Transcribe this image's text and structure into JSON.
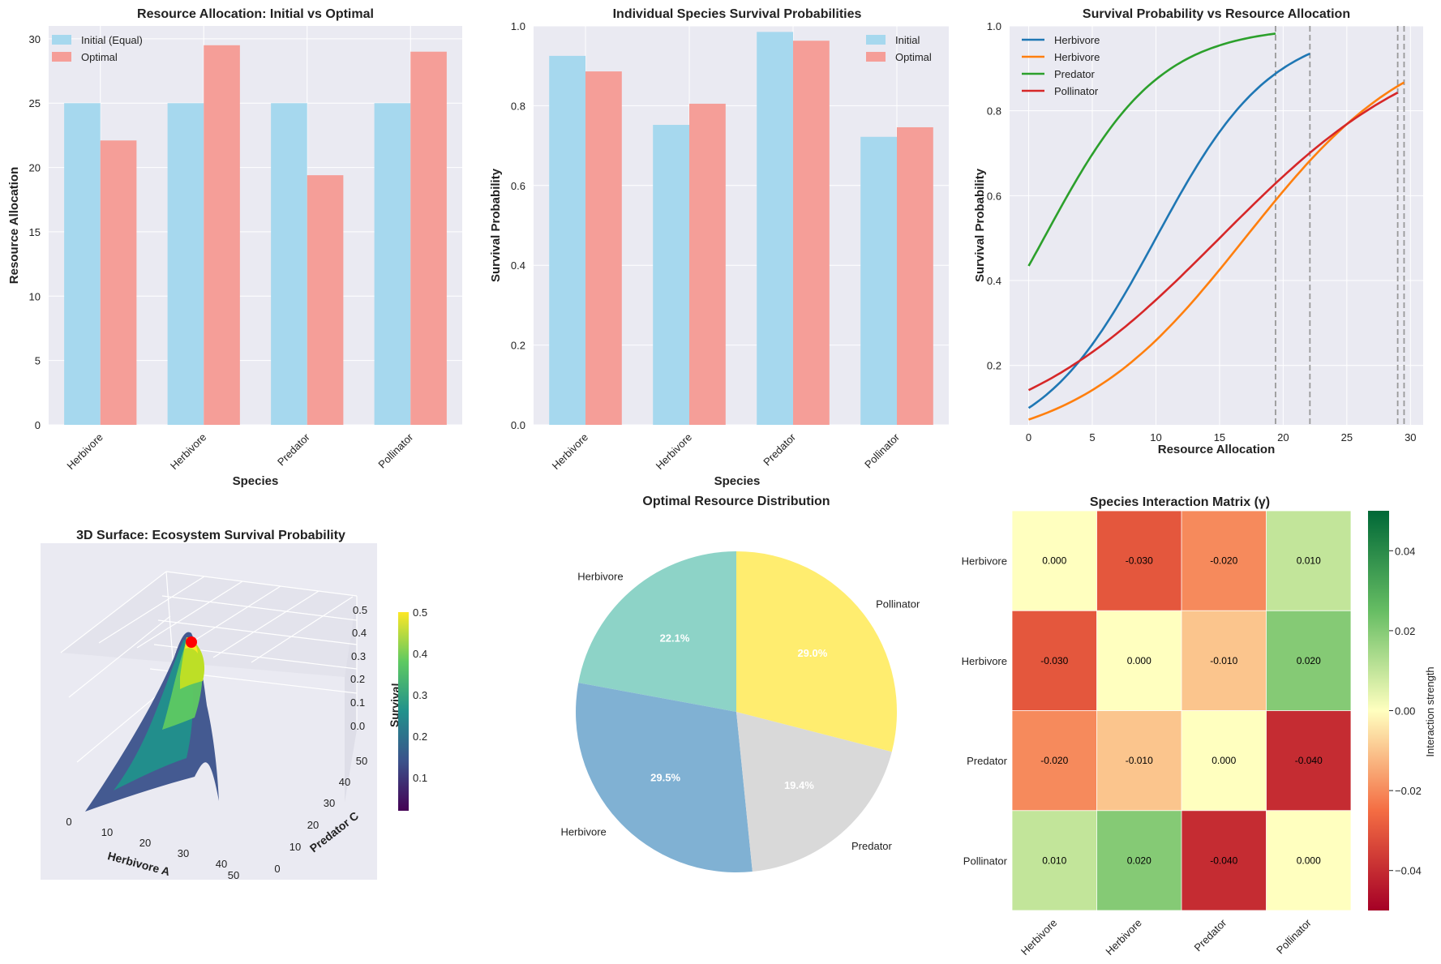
{
  "colors": {
    "initial": "#a6d8ee",
    "optimal": "#f59e98",
    "axes_bg": "#eaeaf2",
    "line1": "#1f77b4",
    "line2": "#ff7f0e",
    "line3": "#2ca02c",
    "line4": "#d62728",
    "pie": [
      "#8dd3c7",
      "#80b1d3",
      "#d9d9d9",
      "#ffed6f"
    ],
    "marker": "#ff0000"
  },
  "chart_data": [
    {
      "id": "alloc",
      "type": "bar",
      "title": "Resource Allocation: Initial vs Optimal",
      "xlabel": "Species",
      "ylabel": "Resource Allocation",
      "categories": [
        "Herbivore",
        "Herbivore",
        "Predator",
        "Pollinator"
      ],
      "series": [
        {
          "name": "Initial (Equal)",
          "values": [
            25,
            25,
            25,
            25
          ]
        },
        {
          "name": "Optimal",
          "values": [
            22.1,
            29.5,
            19.4,
            29.0
          ]
        }
      ],
      "ylim": [
        0,
        31
      ],
      "yticks": [
        0,
        5,
        10,
        15,
        20,
        25,
        30
      ],
      "legend": "top-left"
    },
    {
      "id": "surv",
      "type": "bar",
      "title": "Individual Species Survival Probabilities",
      "xlabel": "Species",
      "ylabel": "Survival Probability",
      "categories": [
        "Herbivore",
        "Herbivore",
        "Predator",
        "Pollinator"
      ],
      "series": [
        {
          "name": "Initial",
          "values": [
            0.925,
            0.752,
            0.985,
            0.722
          ]
        },
        {
          "name": "Optimal",
          "values": [
            0.886,
            0.805,
            0.963,
            0.746
          ]
        }
      ],
      "ylim": [
        0,
        1.0
      ],
      "yticks": [
        0.0,
        0.2,
        0.4,
        0.6,
        0.8,
        1.0
      ],
      "legend": "top-right"
    },
    {
      "id": "curves",
      "type": "line",
      "title": "Survival Probability vs Resource Allocation",
      "xlabel": "Resource Allocation",
      "ylabel": "Survival Probability",
      "xlim": [
        -1.5,
        31
      ],
      "ylim": [
        0.06,
        1.0
      ],
      "xticks": [
        0,
        5,
        10,
        15,
        20,
        25,
        30
      ],
      "yticks": [
        0.2,
        0.4,
        0.6,
        0.8,
        1.0
      ],
      "series": [
        {
          "name": "Herbivore",
          "k": 0.22,
          "x0": 10,
          "xmax": 22.1
        },
        {
          "name": "Herbivore",
          "k": 0.15,
          "x0": 17,
          "xmax": 29.5
        },
        {
          "name": "Predator",
          "k": 0.22,
          "x0": 1.2,
          "xmax": 19.4
        },
        {
          "name": "Pollinator",
          "k": 0.12,
          "x0": 15,
          "xmax": 29.0
        }
      ],
      "vlines": [
        22.1,
        29.5,
        19.4,
        29.0
      ],
      "legend": "top-left"
    },
    {
      "id": "surface",
      "type": "surface3d",
      "title": "3D Surface: Ecosystem Survival Probability",
      "xlabel": "Herbivore A",
      "ylabel": "Predator C",
      "zlabel": "Survival",
      "xticks": [
        0,
        10,
        20,
        30,
        40,
        50
      ],
      "yticks": [
        0,
        10,
        20,
        30,
        40,
        50
      ],
      "zticks": [
        0.0,
        0.1,
        0.2,
        0.3,
        0.4,
        0.5
      ],
      "colorbar_ticks": [
        0.1,
        0.2,
        0.3,
        0.4,
        0.5
      ],
      "optimum": {
        "x": 22.1,
        "y": 19.4,
        "z": 0.5
      }
    },
    {
      "id": "pie",
      "type": "pie",
      "title": "Optimal Resource Distribution",
      "labels": [
        "Herbivore",
        "Herbivore",
        "Predator",
        "Pollinator"
      ],
      "values": [
        22.1,
        29.5,
        19.4,
        29.0
      ],
      "pct_labels": [
        "22.1%",
        "29.5%",
        "19.4%",
        "29.0%"
      ]
    },
    {
      "id": "matrix",
      "type": "heatmap",
      "title": "Species Interaction Matrix (γ)",
      "labels": [
        "Herbivore",
        "Herbivore",
        "Predator",
        "Pollinator"
      ],
      "values": [
        [
          0.0,
          -0.03,
          -0.02,
          0.01
        ],
        [
          -0.03,
          0.0,
          -0.01,
          0.02
        ],
        [
          -0.02,
          -0.01,
          0.0,
          -0.04
        ],
        [
          0.01,
          0.02,
          -0.04,
          0.0
        ]
      ],
      "cell_text": [
        [
          "0.000",
          "-0.030",
          "-0.020",
          "0.010"
        ],
        [
          "-0.030",
          "0.000",
          "-0.010",
          "0.020"
        ],
        [
          "-0.020",
          "-0.010",
          "0.000",
          "-0.040"
        ],
        [
          "0.010",
          "0.020",
          "-0.040",
          "0.000"
        ]
      ],
      "vmin": -0.05,
      "vmax": 0.05,
      "colorbar_label": "Interaction strength",
      "colorbar_ticks": [
        -0.04,
        -0.02,
        0.0,
        0.02,
        0.04
      ]
    }
  ]
}
